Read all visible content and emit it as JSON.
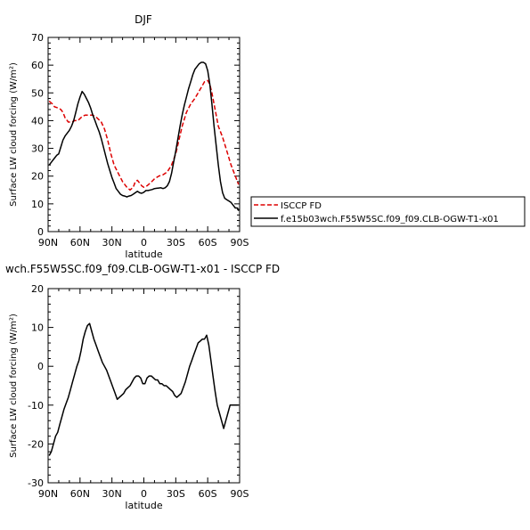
{
  "chart_data": [
    {
      "type": "line",
      "title": "DJF",
      "xlabel": "latitude",
      "ylabel": "Surface LW cloud forcing (W/m²)",
      "xlim": [
        -90,
        90
      ],
      "ylim": [
        0,
        70
      ],
      "x_ticks": [
        "90N",
        "60N",
        "30N",
        "0",
        "30S",
        "60S",
        "90S"
      ],
      "y_ticks": [
        "0",
        "10",
        "20",
        "30",
        "40",
        "50",
        "60",
        "70"
      ],
      "legend_position": "right",
      "series": [
        {
          "name": "ISCCP FD",
          "color": "#dd0000",
          "dash": "dashed",
          "x": [
            -89,
            -86,
            -84,
            -80,
            -78,
            -76,
            -74,
            -71,
            -68,
            -65,
            -62,
            -58,
            -55,
            -52,
            -48,
            -44,
            -40,
            -37,
            -34,
            -31,
            -28,
            -24,
            -20,
            -16,
            -13,
            -10,
            -8,
            -6,
            -4,
            -2,
            0,
            3,
            6,
            10,
            14,
            18,
            22,
            26,
            30,
            33,
            36,
            40,
            44,
            48,
            51,
            54,
            57,
            60,
            62,
            64,
            66,
            68,
            70,
            74,
            78,
            82,
            86,
            89
          ],
          "y": [
            47,
            46,
            45,
            44.5,
            44,
            43,
            41,
            39.5,
            39.5,
            40,
            40,
            41.5,
            42,
            42,
            42,
            41,
            39.5,
            37,
            33,
            28,
            24,
            21,
            18,
            16,
            15,
            16,
            18,
            18.5,
            17.5,
            16.5,
            16,
            16.5,
            17.5,
            19,
            20,
            20.5,
            21.5,
            24,
            28,
            33,
            38,
            43,
            46,
            48,
            50,
            52,
            54,
            54.5,
            53,
            50,
            46,
            42,
            38,
            34,
            29,
            24,
            20,
            17
          ]
        },
        {
          "name": "f.e15b03wch.F55W5SC.f09_f09.CLB-OGW-T1-x01",
          "color": "#000000",
          "dash": "solid",
          "x": [
            -89,
            -86,
            -84,
            -82,
            -80,
            -78,
            -76,
            -74,
            -72,
            -70,
            -68,
            -66,
            -64,
            -62,
            -60,
            -58,
            -56,
            -54,
            -52,
            -50,
            -48,
            -46,
            -44,
            -42,
            -40,
            -38,
            -36,
            -34,
            -32,
            -30,
            -28,
            -26,
            -24,
            -22,
            -20,
            -18,
            -16,
            -14,
            -12,
            -10,
            -8,
            -6,
            -4,
            -2,
            0,
            2,
            4,
            6,
            8,
            10,
            12,
            14,
            16,
            18,
            20,
            22,
            24,
            26,
            28,
            30,
            32,
            34,
            36,
            38,
            40,
            42,
            44,
            46,
            48,
            50,
            52,
            54,
            56,
            58,
            60,
            62,
            64,
            66,
            68,
            70,
            72,
            74,
            76,
            78,
            80,
            82,
            84,
            86,
            88,
            89
          ],
          "y": [
            24,
            25.5,
            26.5,
            27.5,
            28,
            30.5,
            33,
            34.5,
            35.5,
            36.5,
            38,
            40,
            43,
            46,
            48.5,
            50.5,
            49.5,
            48,
            46.5,
            44.5,
            42,
            40,
            38,
            36,
            33.5,
            30.5,
            27.5,
            24.5,
            22,
            19.5,
            17.5,
            15.5,
            14.5,
            13.5,
            13,
            12.8,
            12.5,
            12.8,
            13,
            13.5,
            14,
            14.5,
            14,
            13.8,
            14.2,
            14.8,
            14.8,
            15,
            15.2,
            15.5,
            15.6,
            15.7,
            15.8,
            15.5,
            15.8,
            16.5,
            18,
            21,
            25,
            29,
            33.5,
            38,
            42,
            45.5,
            48.5,
            51.5,
            54,
            56.5,
            58.5,
            59.5,
            60.5,
            61,
            61,
            60.5,
            58,
            53,
            46,
            38,
            31,
            24,
            18,
            14,
            12,
            11.5,
            11,
            10.5,
            9.5,
            8.5,
            8.5,
            7.5
          ]
        }
      ]
    },
    {
      "type": "line",
      "title": "wch.F55W5SC.f09_f09.CLB-OGW-T1-x01 - ISCCP FD",
      "xlabel": "latitude",
      "ylabel": "Surface LW cloud forcing (W/m²)",
      "xlim": [
        -90,
        90
      ],
      "ylim": [
        -30,
        20
      ],
      "x_ticks": [
        "90N",
        "60N",
        "30N",
        "0",
        "30S",
        "60S",
        "90S"
      ],
      "y_ticks": [
        "-30",
        "-20",
        "-10",
        "0",
        "10",
        "20"
      ],
      "series": [
        {
          "color": "#000000",
          "dash": "solid",
          "x": [
            -89,
            -87,
            -85,
            -83,
            -81,
            -79,
            -77,
            -75,
            -73,
            -71,
            -69,
            -67,
            -65,
            -63,
            -61,
            -59,
            -57,
            -55,
            -53,
            -51,
            -49,
            -47,
            -45,
            -43,
            -41,
            -39,
            -37,
            -35,
            -33,
            -31,
            -29,
            -27,
            -25,
            -23,
            -21,
            -19,
            -17,
            -15,
            -13,
            -11,
            -9,
            -7,
            -5,
            -3,
            -1,
            1,
            3,
            5,
            7,
            9,
            11,
            13,
            15,
            17,
            19,
            21,
            23,
            25,
            27,
            29,
            31,
            33,
            35,
            37,
            39,
            41,
            43,
            45,
            47,
            49,
            51,
            53,
            55,
            57,
            59,
            61,
            63,
            65,
            67,
            69,
            71,
            73,
            75,
            77,
            79,
            81,
            83,
            85,
            87,
            89
          ],
          "y": [
            -23,
            -22,
            -20,
            -18,
            -17,
            -15,
            -13,
            -11,
            -9.5,
            -8,
            -6,
            -4,
            -2,
            0,
            1.5,
            4,
            7,
            9,
            10.5,
            11,
            9,
            7,
            5.5,
            4,
            2.5,
            1,
            0,
            -1,
            -2.5,
            -4,
            -5.5,
            -7,
            -8.5,
            -8,
            -7.5,
            -7,
            -6,
            -5.5,
            -5,
            -4,
            -3,
            -2.5,
            -2.5,
            -3,
            -4.5,
            -4.5,
            -3,
            -2.5,
            -2.5,
            -3,
            -3.5,
            -3.5,
            -4.5,
            -4.5,
            -5,
            -5,
            -5.5,
            -6,
            -6.5,
            -7.5,
            -8,
            -7.5,
            -7,
            -5.5,
            -4,
            -2,
            0,
            1.5,
            3,
            4.5,
            6,
            6.5,
            7,
            7,
            8,
            5.5,
            1.5,
            -2.5,
            -6.5,
            -10,
            -12,
            -14,
            -16,
            -14,
            -12,
            -10,
            -10,
            -10,
            -10,
            -10
          ]
        }
      ]
    }
  ]
}
